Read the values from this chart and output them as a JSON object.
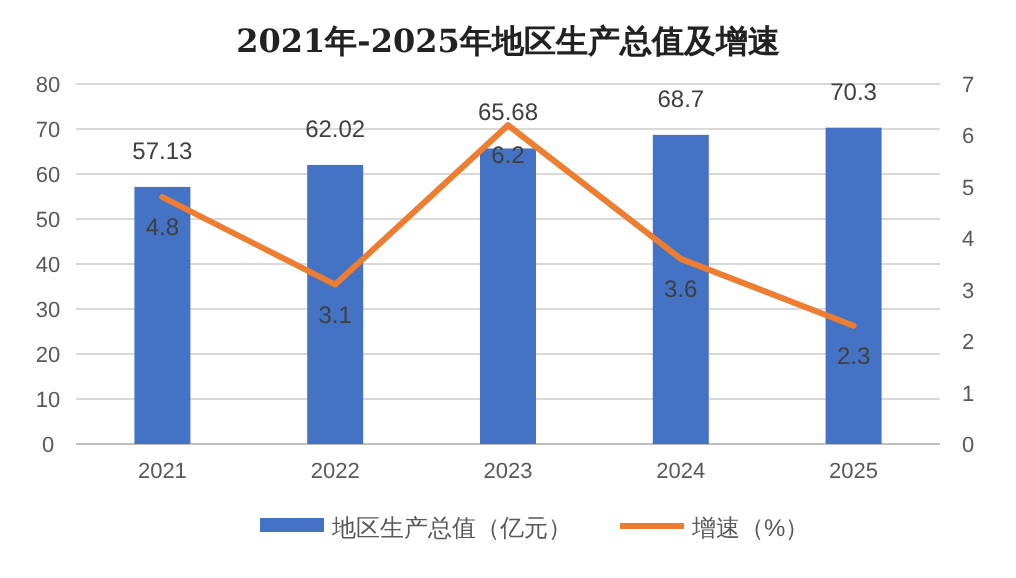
{
  "chart_data": {
    "type": "bar",
    "title": "2021年-2025年地区生产总值及增速",
    "categories": [
      "2021",
      "2022",
      "2023",
      "2024",
      "2025"
    ],
    "series": [
      {
        "name": "地区生产总值（亿元）",
        "color": "#4472c4",
        "values": [
          57.13,
          62.02,
          65.68,
          68.7,
          70.3
        ]
      },
      {
        "name": "增速（%）",
        "type": "line",
        "axis": "y2",
        "color": "#ed7d31",
        "values": [
          4.8,
          3.1,
          6.2,
          3.6,
          2.3
        ]
      }
    ],
    "ylim": [
      0,
      80
    ],
    "yticks": [
      0,
      10,
      20,
      30,
      40,
      50,
      60,
      70,
      80
    ],
    "y2lim": [
      0,
      7
    ],
    "y2ticks": [
      0,
      1,
      2,
      3,
      4,
      5,
      6,
      7
    ],
    "grid": "y",
    "legend": "bottom",
    "data_labels": true
  }
}
